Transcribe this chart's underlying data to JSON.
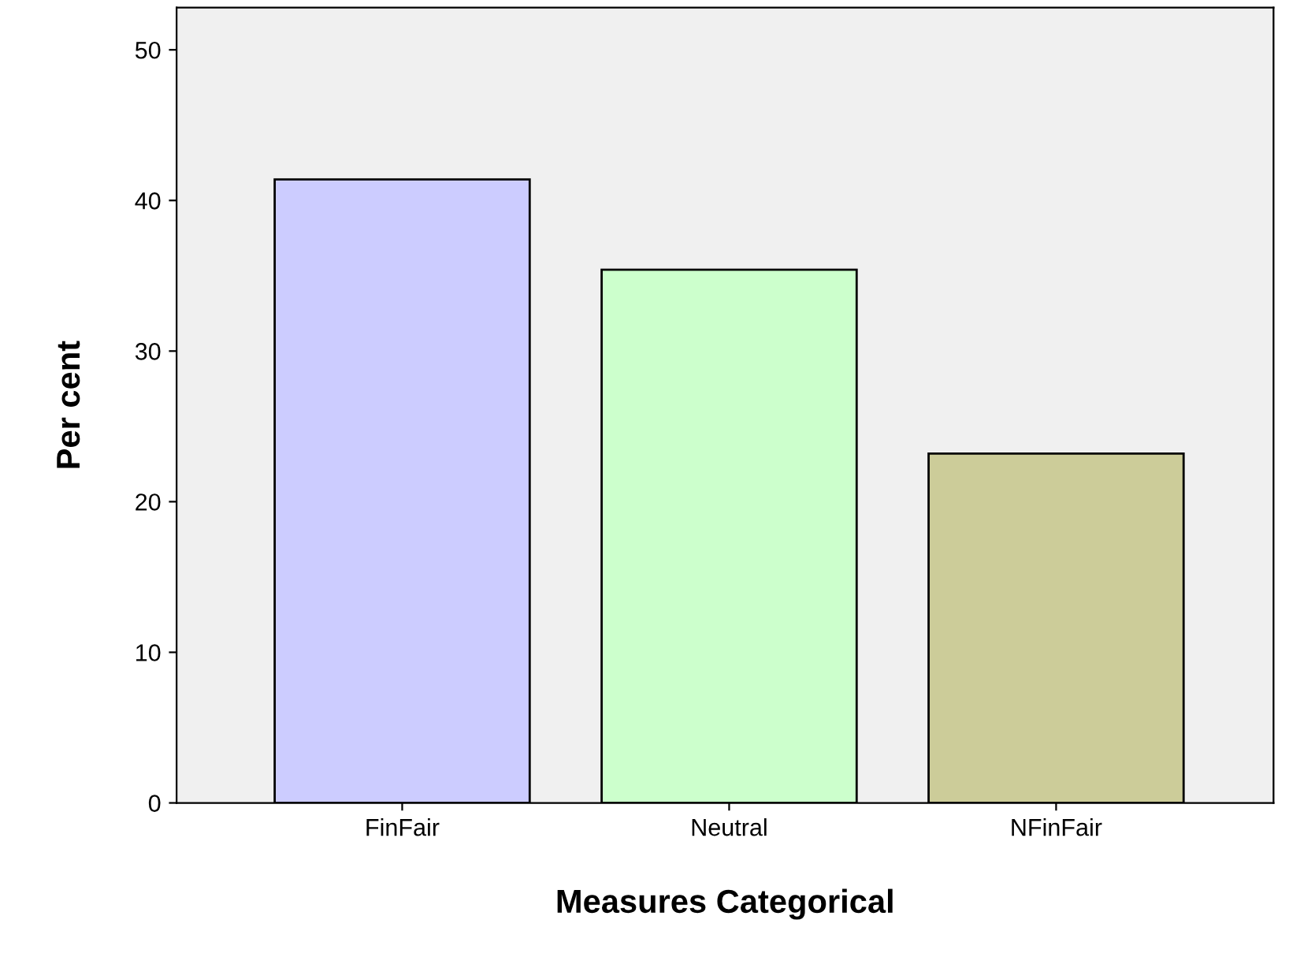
{
  "chart_data": {
    "type": "bar",
    "xlabel": "Measures Categorical",
    "ylabel": "Per cent",
    "categories": [
      "FinFair",
      "Neutral",
      "NFinFair"
    ],
    "values": [
      41.4,
      35.4,
      23.2
    ],
    "colors": [
      "#ccccff",
      "#ccffcc",
      "#cccc99"
    ],
    "ylim": [
      0,
      52.8
    ],
    "yticks": [
      0,
      10,
      20,
      30,
      40,
      50
    ],
    "grid": false,
    "legend": false
  }
}
